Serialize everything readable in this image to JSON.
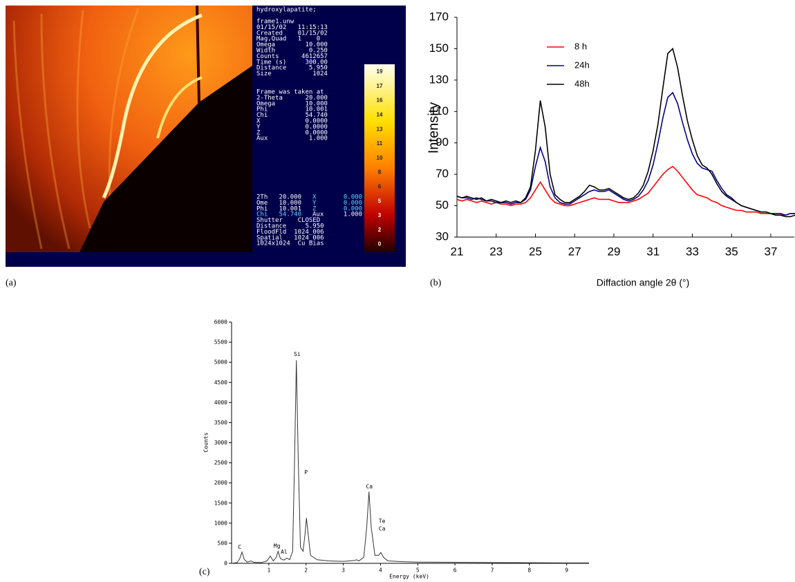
{
  "panel_labels": [
    "(a)",
    "(b)",
    "(c)"
  ],
  "image_panel": {
    "title": "hydroxylapatite;",
    "header_lines": [
      "frame1.unw",
      "01/15/02   11:15:13",
      "Created    01/15/02",
      "Mag,Quad   1    0",
      "Omega        10.000",
      "Width         0.250",
      "Counts      4612657",
      "Time (s)     300.00",
      "Distance      5.950",
      "Size           1024"
    ],
    "frame_lines": [
      "Frame was taken at",
      "2-Theta      20.000",
      "Omega        10.000",
      "Phi          10.001",
      "Chi          54.740",
      "X            0.0000",
      "Y            0.0000",
      "Z            0.0000",
      "Aux           1.000"
    ],
    "bottom_rows": [
      [
        "2Th   20.000",
        "X",
        "0.000"
      ],
      [
        "Ome   10.000",
        "Y",
        "0.000"
      ],
      [
        "Phi   10.001",
        "Z",
        "0.000"
      ],
      [
        "Chi   54.740",
        "Aux",
        "1.000"
      ],
      [
        "Shutter    CLOSED"
      ],
      [
        "Distance     5.950"
      ],
      [
        "FloodFld  1024_006"
      ],
      [
        "Spatial   1024_006"
      ],
      [
        "1024x1024  Cu Bias"
      ]
    ],
    "colorbar_ticks": [
      19,
      17,
      16,
      14,
      13,
      11,
      10,
      8,
      6,
      5,
      3,
      2,
      0
    ]
  },
  "chart_data": [
    {
      "type": "line",
      "y_label": "Intensity",
      "x_label": "Diffaction angle  2θ (°)",
      "x": [
        21,
        21.25,
        21.5,
        21.75,
        22,
        22.25,
        22.5,
        22.75,
        23,
        23.25,
        23.5,
        23.75,
        24,
        24.25,
        24.5,
        24.75,
        25,
        25.25,
        25.5,
        25.75,
        26,
        26.25,
        26.5,
        26.75,
        27,
        27.25,
        27.5,
        27.75,
        28,
        28.25,
        28.5,
        28.75,
        29,
        29.25,
        29.5,
        29.75,
        30,
        30.25,
        30.5,
        30.75,
        31,
        31.25,
        31.5,
        31.75,
        32,
        32.25,
        32.5,
        32.75,
        33,
        33.25,
        33.5,
        33.75,
        34,
        34.25,
        34.5,
        34.75,
        35,
        35.25,
        35.5,
        35.75,
        36,
        36.25,
        36.5,
        36.75,
        37,
        37.25,
        37.5,
        37.75,
        38,
        38.25
      ],
      "series": [
        {
          "name": "8 h",
          "color": "#ff0000",
          "values": [
            54,
            53,
            54,
            53,
            52,
            53,
            52,
            51,
            52,
            51,
            51,
            50,
            51,
            51,
            52,
            55,
            60,
            65,
            60,
            55,
            52,
            51,
            50,
            50,
            51,
            52,
            53,
            54,
            55,
            54,
            54,
            54,
            53,
            52,
            52,
            52,
            53,
            54,
            56,
            58,
            62,
            66,
            70,
            73,
            75,
            72,
            68,
            64,
            60,
            57,
            56,
            55,
            53,
            52,
            50,
            49,
            48,
            47,
            47,
            46,
            46,
            46,
            45,
            45,
            45,
            44,
            44,
            44,
            45,
            45
          ]
        },
        {
          "name": "24h",
          "color": "#00008b",
          "values": [
            56,
            55,
            55,
            54,
            55,
            54,
            53,
            53,
            52,
            52,
            52,
            51,
            52,
            52,
            54,
            60,
            75,
            87,
            78,
            62,
            55,
            52,
            51,
            51,
            53,
            55,
            57,
            59,
            60,
            59,
            59,
            60,
            58,
            56,
            54,
            53,
            54,
            56,
            60,
            66,
            76,
            90,
            106,
            119,
            122,
            115,
            103,
            92,
            83,
            77,
            74,
            73,
            72,
            66,
            61,
            57,
            55,
            52,
            50,
            49,
            48,
            47,
            46,
            46,
            45,
            45,
            45,
            44,
            45,
            45
          ]
        },
        {
          "name": "48h",
          "color": "#000000",
          "values": [
            56,
            55,
            56,
            55,
            54,
            55,
            53,
            54,
            53,
            52,
            53,
            52,
            53,
            52,
            55,
            62,
            85,
            117,
            100,
            70,
            57,
            54,
            52,
            52,
            54,
            56,
            59,
            63,
            62,
            60,
            60,
            61,
            59,
            57,
            55,
            54,
            55,
            58,
            63,
            72,
            85,
            102,
            125,
            147,
            150,
            138,
            120,
            104,
            92,
            82,
            76,
            74,
            70,
            64,
            59,
            56,
            54,
            52,
            50,
            49,
            48,
            47,
            46,
            46,
            45,
            44,
            44,
            43,
            43,
            44
          ]
        }
      ],
      "xlim": [
        21,
        38.2
      ],
      "xticks": [
        21,
        23,
        25,
        27,
        29,
        31,
        33,
        35,
        37
      ],
      "ylim": [
        30,
        170
      ],
      "yticks": [
        30,
        50,
        70,
        90,
        110,
        130,
        150,
        170
      ],
      "legend": "upper left"
    },
    {
      "type": "spectrum",
      "y_label": "Counts",
      "x_label": "Energy (keV)",
      "x": [
        0,
        0.15,
        0.22,
        0.28,
        0.34,
        0.42,
        0.52,
        0.6,
        0.8,
        0.95,
        1.04,
        1.12,
        1.2,
        1.25,
        1.31,
        1.4,
        1.49,
        1.56,
        1.64,
        1.69,
        1.74,
        1.79,
        1.85,
        1.92,
        1.97,
        2.01,
        2.06,
        2.12,
        2.3,
        2.6,
        3.0,
        3.3,
        3.35,
        3.42,
        3.55,
        3.63,
        3.69,
        3.75,
        3.85,
        3.95,
        4.01,
        4.08,
        4.2,
        4.6,
        5.0,
        6.0,
        7.0,
        8.0,
        9.0,
        9.6
      ],
      "values": [
        0,
        20,
        120,
        280,
        100,
        30,
        60,
        25,
        20,
        60,
        180,
        60,
        150,
        300,
        120,
        80,
        130,
        90,
        300,
        2500,
        5050,
        2600,
        400,
        300,
        700,
        1130,
        700,
        200,
        90,
        60,
        50,
        70,
        90,
        60,
        150,
        900,
        1780,
        900,
        200,
        200,
        270,
        150,
        60,
        40,
        30,
        25,
        20,
        15,
        10,
        10
      ],
      "color": "#333333",
      "annotations": [
        {
          "text": "C",
          "x": 0.22,
          "y": 400
        },
        {
          "text": "Mg",
          "x": 1.22,
          "y": 430
        },
        {
          "text": "Al",
          "x": 1.41,
          "y": 280
        },
        {
          "text": "Si",
          "x": 1.76,
          "y": 5200
        },
        {
          "text": "P",
          "x": 2.0,
          "y": 2260
        },
        {
          "text": "Ca",
          "x": 3.7,
          "y": 1910
        },
        {
          "text": "Te",
          "x": 4.04,
          "y": 1050
        },
        {
          "text": "Ca",
          "x": 4.04,
          "y": 860
        }
      ],
      "xlim": [
        0,
        9.6
      ],
      "xticks": [
        1,
        2,
        3,
        4,
        5,
        6,
        7,
        8,
        9
      ],
      "ylim": [
        0,
        6000
      ],
      "yticks": [
        0,
        500,
        1000,
        1500,
        2000,
        2500,
        3000,
        3500,
        4000,
        4500,
        5000,
        5500,
        6000
      ]
    }
  ]
}
